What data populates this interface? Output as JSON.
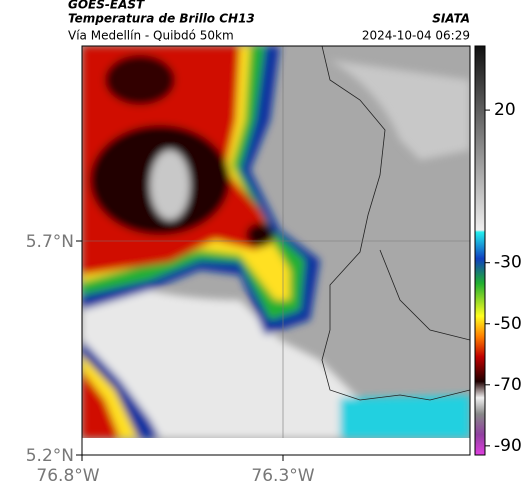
{
  "header": {
    "source": "GOES-EAST",
    "title": "Temperatura de Brillo CH13",
    "subtitle": "Vía Medellín - Quibdó 50km",
    "org": "SIATA",
    "datetime": "2024-10-04 06:29"
  },
  "map": {
    "lat_labels": [
      "5.7°N",
      "5.2°N"
    ],
    "lon_labels": [
      "76.8°W",
      "76.3°W"
    ]
  },
  "colorbar": {
    "lim": [
      -93,
      41
    ],
    "ticks": [
      20,
      -30,
      -50,
      -70,
      -90
    ]
  }
}
